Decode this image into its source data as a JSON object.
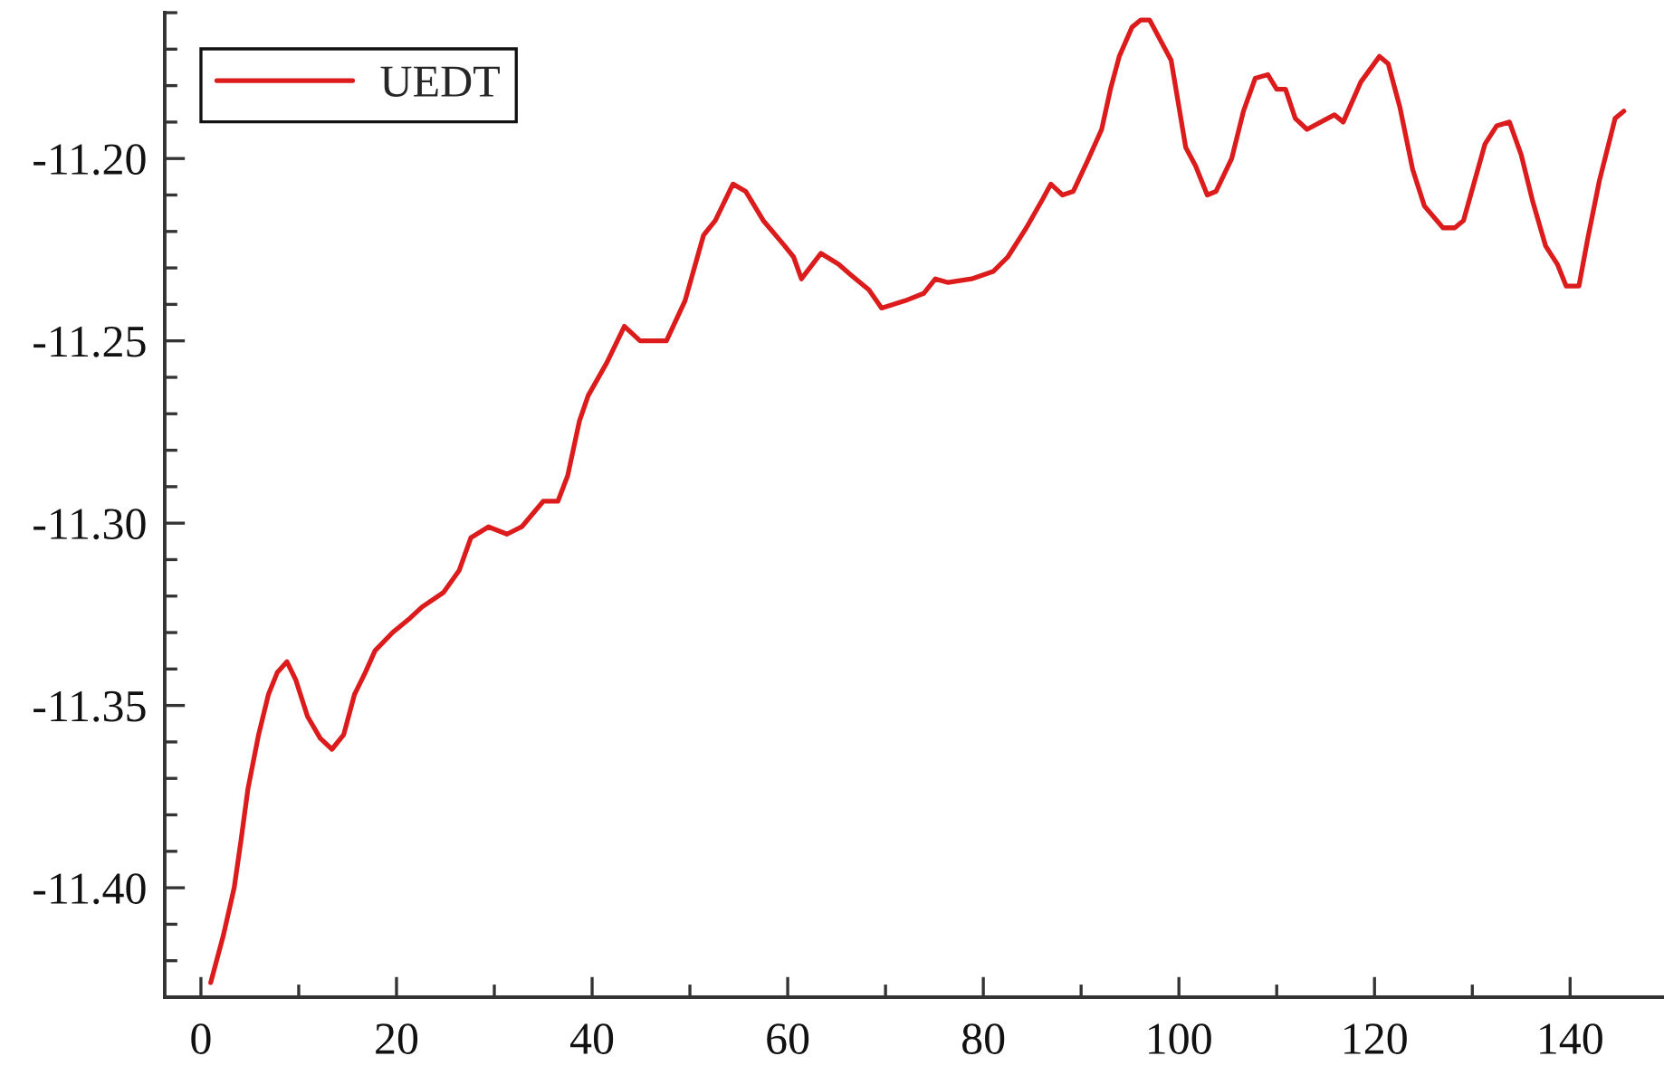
{
  "chart_data": {
    "type": "line",
    "x": [
      1.0,
      2.3,
      3.4,
      4.1,
      4.8,
      5.9,
      6.9,
      7.8,
      8.8,
      9.7,
      10.9,
      12.2,
      13.4,
      14.6,
      15.7,
      16.8,
      17.8,
      19.6,
      21.4,
      22.6,
      24.8,
      26.4,
      27.6,
      29.4,
      31.3,
      32.8,
      35.0,
      36.5,
      37.5,
      38.7,
      39.6,
      41.5,
      43.3,
      44.9,
      47.6,
      49.5,
      51.4,
      52.6,
      54.4,
      55.7,
      57.5,
      59.7,
      60.6,
      61.4,
      63.4,
      65.2,
      66.5,
      68.3,
      69.6,
      72.0,
      73.9,
      75.1,
      76.4,
      78.8,
      81.0,
      82.5,
      84.4,
      86.1,
      86.9,
      88.1,
      89.2,
      90.6,
      92.1,
      93.0,
      93.9,
      95.2,
      96.1,
      97.0,
      99.2,
      100.7,
      101.7,
      102.9,
      103.8,
      105.4,
      106.6,
      107.8,
      109.1,
      110.0,
      110.9,
      111.9,
      113.1,
      115.2,
      115.9,
      116.8,
      118.6,
      120.5,
      121.4,
      122.6,
      123.9,
      125.1,
      127.0,
      128.2,
      129.1,
      131.3,
      132.5,
      133.8,
      135.0,
      136.2,
      137.5,
      138.7,
      139.6,
      140.9,
      141.8,
      143.0,
      144.6,
      145.5
    ],
    "series": [
      {
        "name": "UEDT",
        "color": "#dc1c1c",
        "values": [
          -11.426,
          -11.413,
          -11.4,
          -11.387,
          -11.373,
          -11.358,
          -11.347,
          -11.341,
          -11.338,
          -11.343,
          -11.353,
          -11.359,
          -11.362,
          -11.358,
          -11.347,
          -11.341,
          -11.335,
          -11.33,
          -11.326,
          -11.323,
          -11.319,
          -11.313,
          -11.304,
          -11.301,
          -11.303,
          -11.301,
          -11.294,
          -11.294,
          -11.287,
          -11.272,
          -11.265,
          -11.256,
          -11.246,
          -11.25,
          -11.25,
          -11.239,
          -11.221,
          -11.217,
          -11.207,
          -11.209,
          -11.217,
          -11.224,
          -11.227,
          -11.233,
          -11.226,
          -11.229,
          -11.232,
          -11.236,
          -11.241,
          -11.239,
          -11.237,
          -11.233,
          -11.234,
          -11.233,
          -11.231,
          -11.227,
          -11.219,
          -11.211,
          -11.207,
          -11.21,
          -11.209,
          -11.201,
          -11.192,
          -11.181,
          -11.172,
          -11.164,
          -11.162,
          -11.162,
          -11.173,
          -11.197,
          -11.202,
          -11.21,
          -11.209,
          -11.2,
          -11.187,
          -11.178,
          -11.177,
          -11.181,
          -11.181,
          -11.189,
          -11.192,
          -11.189,
          -11.188,
          -11.19,
          -11.179,
          -11.172,
          -11.174,
          -11.186,
          -11.203,
          -11.213,
          -11.219,
          -11.219,
          -11.217,
          -11.196,
          -11.191,
          -11.19,
          -11.199,
          -11.212,
          -11.224,
          -11.229,
          -11.235,
          -11.235,
          -11.222,
          -11.206,
          -11.189,
          -11.187
        ]
      }
    ],
    "xlim": [
      -3.7,
      149.6
    ],
    "ylim": [
      -11.43,
      -11.16
    ],
    "xticks": [
      0,
      {
        "value": 10,
        "label": null
      },
      20,
      {
        "value": 30,
        "label": null
      },
      40,
      {
        "value": 50,
        "label": null
      },
      60,
      {
        "value": 70,
        "label": null
      },
      80,
      {
        "value": 90,
        "label": null
      },
      100,
      {
        "value": 110,
        "label": null
      },
      120,
      {
        "value": 130,
        "label": null
      },
      140
    ],
    "yticks": [
      {
        "value": -11.43,
        "label": null
      },
      {
        "value": -11.42,
        "label": null
      },
      {
        "value": -11.41,
        "label": null
      },
      {
        "value": -11.4,
        "label": "-11.40"
      },
      {
        "value": -11.39,
        "label": null
      },
      {
        "value": -11.38,
        "label": null
      },
      {
        "value": -11.37,
        "label": null
      },
      {
        "value": -11.36,
        "label": null
      },
      {
        "value": -11.35,
        "label": "-11.35"
      },
      {
        "value": -11.34,
        "label": null
      },
      {
        "value": -11.33,
        "label": null
      },
      {
        "value": -11.32,
        "label": null
      },
      {
        "value": -11.31,
        "label": null
      },
      {
        "value": -11.3,
        "label": "-11.30"
      },
      {
        "value": -11.29,
        "label": null
      },
      {
        "value": -11.28,
        "label": null
      },
      {
        "value": -11.27,
        "label": null
      },
      {
        "value": -11.26,
        "label": null
      },
      {
        "value": -11.25,
        "label": "-11.25"
      },
      {
        "value": -11.24,
        "label": null
      },
      {
        "value": -11.23,
        "label": null
      },
      {
        "value": -11.22,
        "label": null
      },
      {
        "value": -11.21,
        "label": null
      },
      {
        "value": -11.2,
        "label": "-11.20"
      },
      {
        "value": -11.19,
        "label": null
      },
      {
        "value": -11.18,
        "label": null
      },
      {
        "value": -11.17,
        "label": null
      },
      {
        "value": -11.16,
        "label": null
      }
    ],
    "legend": "top left"
  }
}
